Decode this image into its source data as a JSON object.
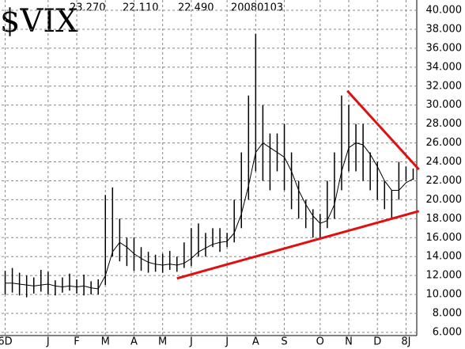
{
  "chart_data": {
    "type": "range-bar",
    "title": "$VIX",
    "header_values": [
      "23.270",
      "22.110",
      "22.490",
      "20080103"
    ],
    "categories": [
      "6D",
      null,
      null,
      null,
      null,
      null,
      "J",
      null,
      null,
      null,
      "F",
      null,
      null,
      null,
      "M",
      null,
      null,
      null,
      "A",
      null,
      null,
      null,
      "M",
      null,
      null,
      null,
      "J",
      null,
      null,
      null,
      null,
      "J",
      null,
      null,
      null,
      "A",
      null,
      null,
      null,
      "S",
      null,
      null,
      null,
      null,
      "O",
      null,
      null,
      null,
      "N",
      null,
      null,
      null,
      "D",
      null,
      null,
      null,
      "8J",
      null
    ],
    "high": [
      12.5,
      12.8,
      12.3,
      12.0,
      11.8,
      12.6,
      12.4,
      11.5,
      11.8,
      12.2,
      11.6,
      12.1,
      11.4,
      11.6,
      20.5,
      21.3,
      18.0,
      16.0,
      16.0,
      15.0,
      14.5,
      14.2,
      14.3,
      14.6,
      14.0,
      15.5,
      17.0,
      17.5,
      16.5,
      17.0,
      17.0,
      16.5,
      20.0,
      25.0,
      31.0,
      37.5,
      30.0,
      27.0,
      27.0,
      28.0,
      25.0,
      22.0,
      20.0,
      19.0,
      18.5,
      22.0,
      25.0,
      31.0,
      30.0,
      28.0,
      28.0,
      25.0,
      24.0,
      22.0,
      21.0,
      24.0,
      23.5,
      23.3
    ],
    "low": [
      10.0,
      10.2,
      9.9,
      9.7,
      10.1,
      10.3,
      10.0,
      9.9,
      10.2,
      10.4,
      10.1,
      9.9,
      10.0,
      10.0,
      11.0,
      14.0,
      13.5,
      13.0,
      12.5,
      12.5,
      12.3,
      12.4,
      12.3,
      12.6,
      12.4,
      12.8,
      13.0,
      14.0,
      14.0,
      15.0,
      14.5,
      15.0,
      15.5,
      17.0,
      20.0,
      23.0,
      22.0,
      21.0,
      23.0,
      21.0,
      19.0,
      18.0,
      17.0,
      16.0,
      16.0,
      17.0,
      18.0,
      21.0,
      23.0,
      23.0,
      22.0,
      21.0,
      20.0,
      19.0,
      18.0,
      20.0,
      22.0,
      22.1
    ],
    "ma": [
      11.2,
      11.2,
      11.1,
      11.0,
      10.9,
      11.0,
      11.1,
      10.9,
      10.8,
      10.9,
      10.8,
      10.9,
      10.7,
      10.6,
      12.0,
      14.5,
      15.5,
      15.0,
      14.3,
      13.8,
      13.4,
      13.2,
      13.1,
      13.2,
      13.1,
      13.3,
      13.8,
      14.5,
      14.9,
      15.3,
      15.5,
      15.6,
      16.5,
      18.5,
      21.5,
      25.0,
      26.0,
      25.5,
      25.0,
      24.5,
      23.0,
      21.0,
      19.5,
      18.3,
      17.5,
      17.8,
      19.5,
      23.0,
      25.5,
      26.0,
      25.8,
      24.8,
      23.5,
      22.0,
      21.0,
      21.0,
      21.8,
      22.2
    ],
    "trendlines": [
      {
        "color": "#e01010",
        "x": [
          24,
          57.8
        ],
        "y": [
          11.7,
          18.8
        ]
      },
      {
        "color": "#e01010",
        "x": [
          47.8,
          57.8
        ],
        "y": [
          31.5,
          23.2
        ]
      }
    ],
    "bar_color": "#000000",
    "ma_color": "#000000",
    "ylim": [
      6,
      40
    ],
    "yticks": [
      {
        "value": 6,
        "label": "6.000"
      },
      {
        "value": 8,
        "label": "8.000"
      },
      {
        "value": 10,
        "label": "10.000"
      },
      {
        "value": 12,
        "label": "12.000"
      },
      {
        "value": 14,
        "label": "14.000"
      },
      {
        "value": 16,
        "label": "16.000"
      },
      {
        "value": 18,
        "label": "18.000"
      },
      {
        "value": 20,
        "label": "20.000"
      },
      {
        "value": 22,
        "label": "22.000"
      },
      {
        "value": 24,
        "label": "24.000"
      },
      {
        "value": 26,
        "label": "26.000"
      },
      {
        "value": 28,
        "label": "28.000"
      },
      {
        "value": 30,
        "label": "30.000"
      },
      {
        "value": 32,
        "label": "32.000"
      },
      {
        "value": 34,
        "label": "34.000"
      },
      {
        "value": 36,
        "label": "36.000"
      },
      {
        "value": 38,
        "label": "38.000"
      },
      {
        "value": 40,
        "label": "40.000"
      }
    ],
    "grid": true
  }
}
